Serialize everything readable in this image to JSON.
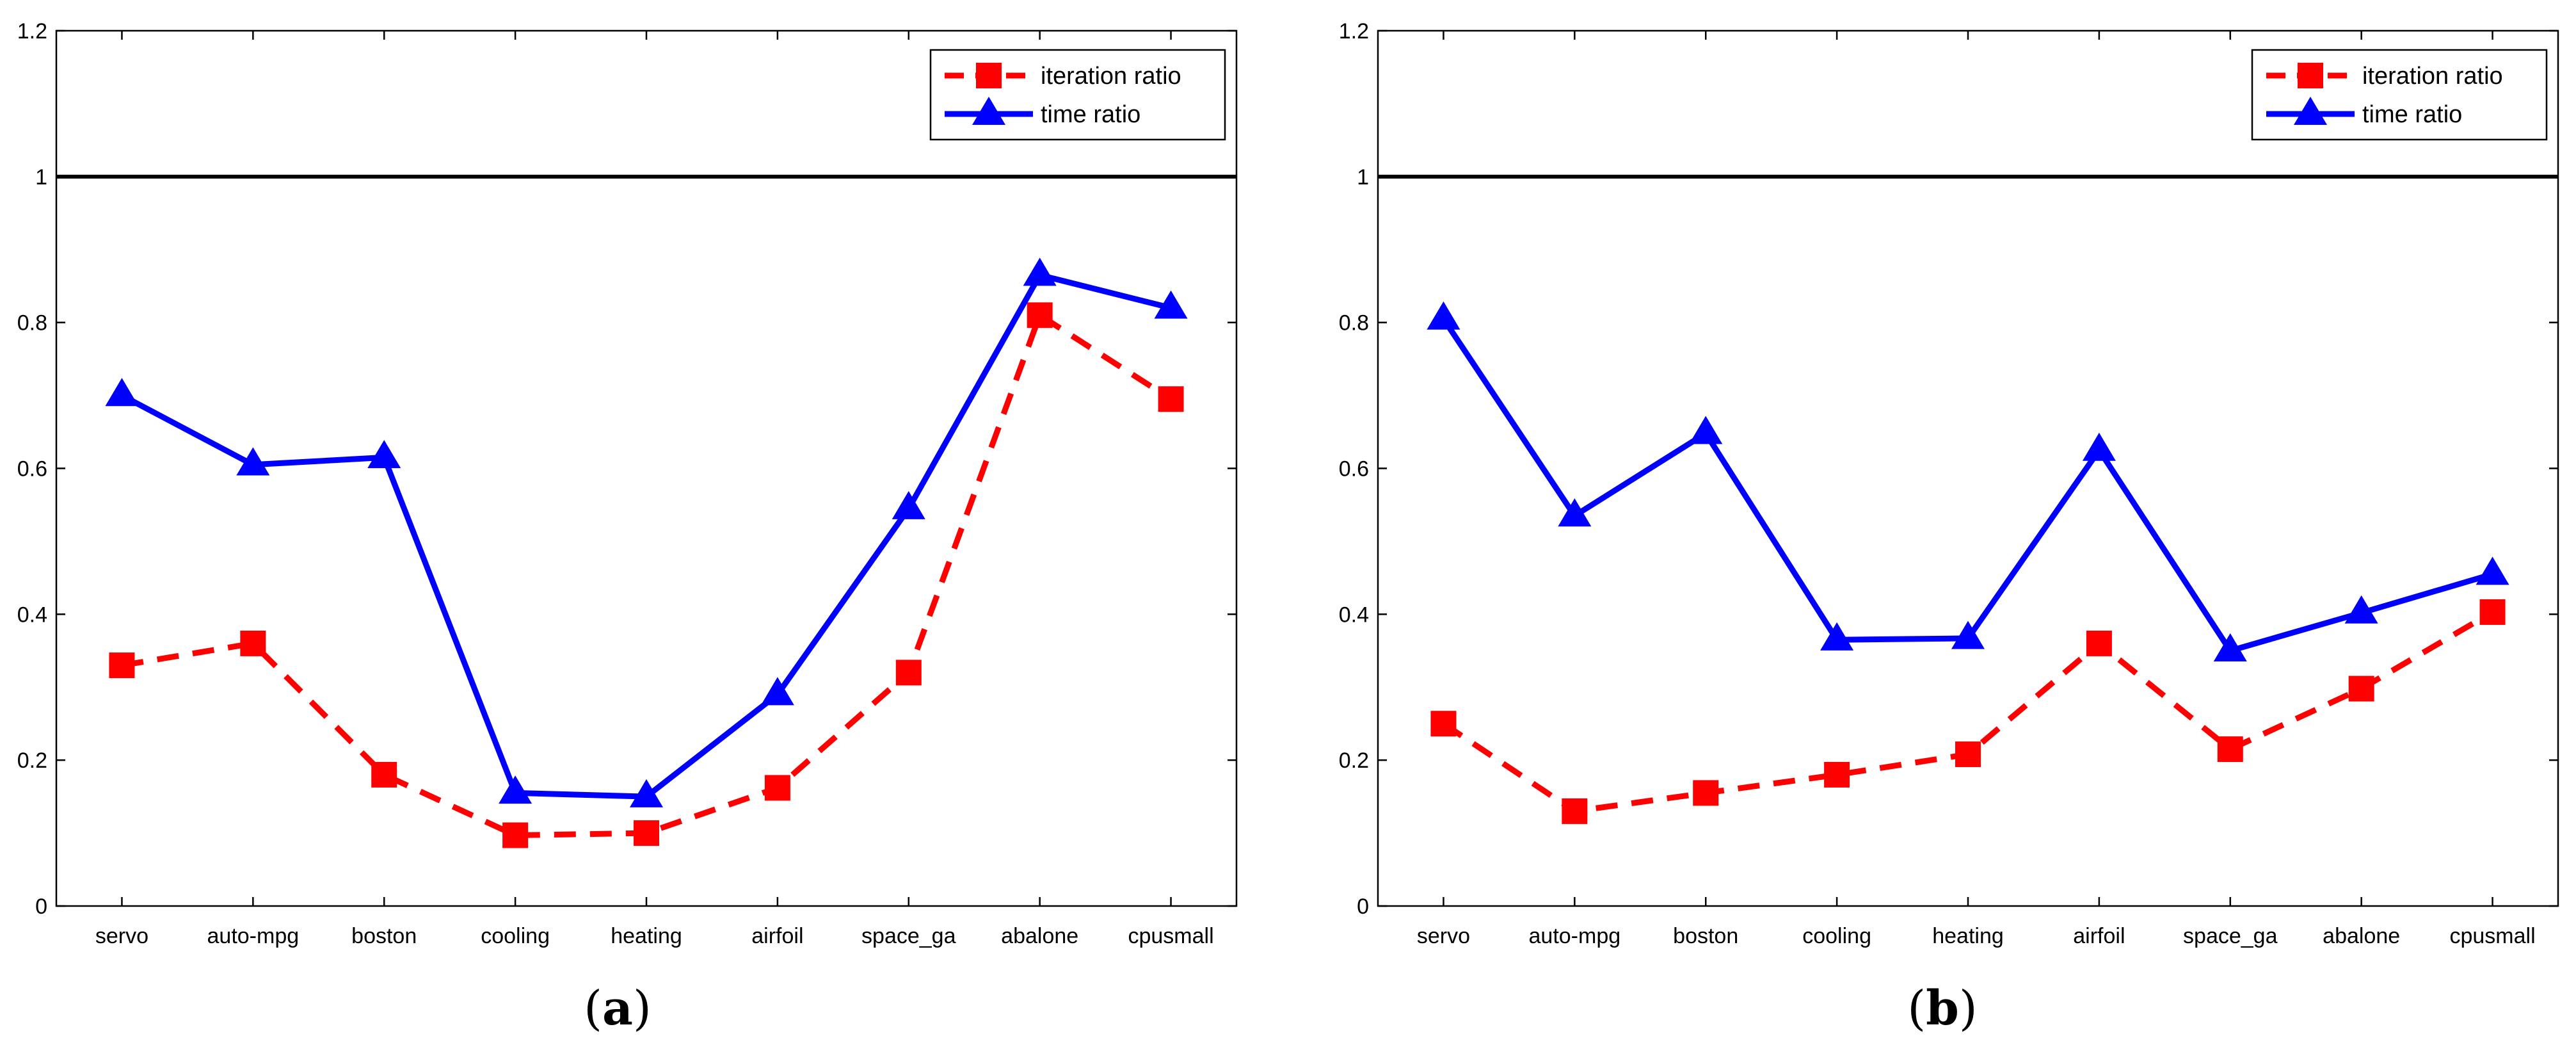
{
  "chart_data": [
    {
      "type": "line",
      "panel_label": "(a)",
      "categories": [
        "servo",
        "auto-mpg",
        "boston",
        "cooling",
        "heating",
        "airfoil",
        "space_ga",
        "abalone",
        "cpusmall"
      ],
      "series": [
        {
          "name": "iteration ratio",
          "color": "#ff0000",
          "style": "dashed",
          "marker": "square",
          "values": [
            0.33,
            0.36,
            0.18,
            0.097,
            0.1,
            0.162,
            0.32,
            0.81,
            0.695
          ]
        },
        {
          "name": "time ratio",
          "color": "#0000ff",
          "style": "solid",
          "marker": "triangle",
          "values": [
            0.7,
            0.605,
            0.615,
            0.155,
            0.15,
            0.29,
            0.545,
            0.865,
            0.82
          ]
        }
      ],
      "reference_line": 1,
      "yticks": [
        "0",
        "0.2",
        "0.4",
        "0.6",
        "0.8",
        "1",
        "1.2"
      ],
      "ylim": [
        0,
        1.2
      ],
      "legend_position": "top-right"
    },
    {
      "type": "line",
      "panel_label": "(b)",
      "categories": [
        "servo",
        "auto-mpg",
        "boston",
        "cooling",
        "heating",
        "airfoil",
        "space_ga",
        "abalone",
        "cpusmall"
      ],
      "series": [
        {
          "name": "iteration ratio",
          "color": "#ff0000",
          "style": "dashed",
          "marker": "square",
          "values": [
            0.25,
            0.13,
            0.155,
            0.18,
            0.208,
            0.36,
            0.215,
            0.298,
            0.403
          ]
        },
        {
          "name": "time ratio",
          "color": "#0000ff",
          "style": "solid",
          "marker": "triangle",
          "values": [
            0.805,
            0.535,
            0.648,
            0.365,
            0.367,
            0.625,
            0.35,
            0.402,
            0.455
          ]
        }
      ],
      "reference_line": 1,
      "yticks": [
        "0",
        "0.2",
        "0.4",
        "0.6",
        "0.8",
        "1",
        "1.2"
      ],
      "ylim": [
        0,
        1.2
      ],
      "legend_position": "top-right"
    }
  ]
}
